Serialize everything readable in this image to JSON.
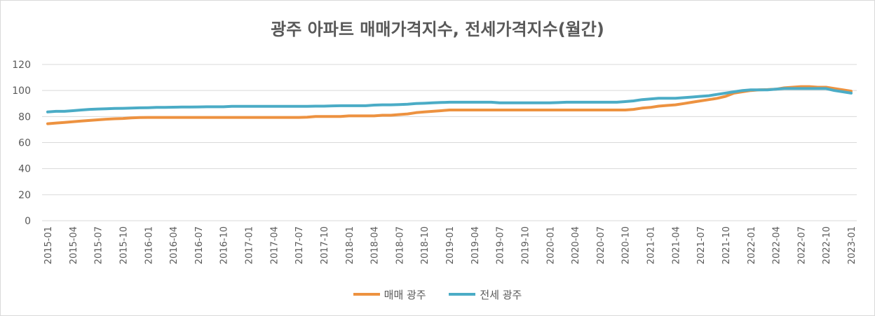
{
  "chart_data": {
    "type": "line",
    "title": "광주 아파트 매매가격지수, 전세가격지수(월간)",
    "xlabel": "",
    "ylabel": "",
    "ylim": [
      0,
      120
    ],
    "yticks": [
      0,
      20,
      40,
      60,
      80,
      100,
      120
    ],
    "grid": true,
    "legend_position": "bottom",
    "x": [
      "2015-01",
      "2015-02",
      "2015-03",
      "2015-04",
      "2015-05",
      "2015-06",
      "2015-07",
      "2015-08",
      "2015-09",
      "2015-10",
      "2015-11",
      "2015-12",
      "2016-01",
      "2016-02",
      "2016-03",
      "2016-04",
      "2016-05",
      "2016-06",
      "2016-07",
      "2016-08",
      "2016-09",
      "2016-10",
      "2016-11",
      "2016-12",
      "2017-01",
      "2017-02",
      "2017-03",
      "2017-04",
      "2017-05",
      "2017-06",
      "2017-07",
      "2017-08",
      "2017-09",
      "2017-10",
      "2017-11",
      "2017-12",
      "2018-01",
      "2018-02",
      "2018-03",
      "2018-04",
      "2018-05",
      "2018-06",
      "2018-07",
      "2018-08",
      "2018-09",
      "2018-10",
      "2018-11",
      "2018-12",
      "2019-01",
      "2019-02",
      "2019-03",
      "2019-04",
      "2019-05",
      "2019-06",
      "2019-07",
      "2019-08",
      "2019-09",
      "2019-10",
      "2019-11",
      "2019-12",
      "2020-01",
      "2020-02",
      "2020-03",
      "2020-04",
      "2020-05",
      "2020-06",
      "2020-07",
      "2020-08",
      "2020-09",
      "2020-10",
      "2020-11",
      "2020-12",
      "2021-01",
      "2021-02",
      "2021-03",
      "2021-04",
      "2021-05",
      "2021-06",
      "2021-07",
      "2021-08",
      "2021-09",
      "2021-10",
      "2021-11",
      "2021-12",
      "2022-01",
      "2022-02",
      "2022-03",
      "2022-04",
      "2022-05",
      "2022-06",
      "2022-07",
      "2022-08",
      "2022-09",
      "2022-10",
      "2022-11",
      "2022-12",
      "2023-01"
    ],
    "xtick_labels": [
      "2015-01",
      "2015-04",
      "2015-07",
      "2015-10",
      "2016-01",
      "2016-04",
      "2016-07",
      "2016-10",
      "2017-01",
      "2017-04",
      "2017-07",
      "2017-10",
      "2018-01",
      "2018-04",
      "2018-07",
      "2018-10",
      "2019-01",
      "2019-04",
      "2019-07",
      "2019-10",
      "2020-01",
      "2020-04",
      "2020-07",
      "2020-10",
      "2021-01",
      "2021-04",
      "2021-07",
      "2021-10",
      "2022-01",
      "2022-04",
      "2022-07",
      "2022-10",
      "2023-01"
    ],
    "series": [
      {
        "name": "매매 광주",
        "color": "#ed9240",
        "values": [
          74.5,
          75.0,
          75.5,
          76.0,
          76.5,
          77.0,
          77.5,
          78.0,
          78.3,
          78.5,
          79.0,
          79.2,
          79.3,
          79.3,
          79.3,
          79.3,
          79.3,
          79.3,
          79.3,
          79.3,
          79.3,
          79.3,
          79.3,
          79.3,
          79.3,
          79.3,
          79.3,
          79.3,
          79.3,
          79.3,
          79.3,
          79.5,
          80.0,
          80.0,
          80.0,
          80.0,
          80.5,
          80.5,
          80.5,
          80.5,
          81.0,
          81.0,
          81.5,
          82.0,
          83.0,
          83.5,
          84.0,
          84.5,
          85.0,
          85.0,
          85.0,
          85.0,
          85.0,
          85.0,
          85.0,
          85.0,
          85.0,
          85.0,
          85.0,
          85.0,
          85.0,
          85.0,
          85.0,
          85.0,
          85.0,
          85.0,
          85.0,
          85.0,
          85.0,
          85.0,
          85.5,
          86.5,
          87.0,
          88.0,
          88.5,
          89.0,
          90.0,
          91.0,
          92.0,
          93.0,
          94.0,
          95.5,
          98.0,
          99.0,
          100.0,
          100.5,
          100.7,
          101.0,
          102.0,
          102.5,
          103.0,
          103.0,
          102.5,
          102.5,
          101.5,
          100.5,
          99.5
        ]
      },
      {
        "name": "전세 광주",
        "color": "#4bacc6",
        "values": [
          83.5,
          84.0,
          84.0,
          84.5,
          85.0,
          85.5,
          85.8,
          86.0,
          86.2,
          86.3,
          86.5,
          86.7,
          86.8,
          87.0,
          87.0,
          87.2,
          87.3,
          87.3,
          87.4,
          87.5,
          87.5,
          87.5,
          87.8,
          87.8,
          87.8,
          87.8,
          87.8,
          87.8,
          87.8,
          87.8,
          87.8,
          87.9,
          88.0,
          88.0,
          88.2,
          88.3,
          88.3,
          88.3,
          88.3,
          88.8,
          89.0,
          89.0,
          89.2,
          89.5,
          90.0,
          90.2,
          90.5,
          90.8,
          91.0,
          91.0,
          91.0,
          91.0,
          91.0,
          91.0,
          90.5,
          90.5,
          90.5,
          90.5,
          90.5,
          90.5,
          90.5,
          90.7,
          91.0,
          91.0,
          91.0,
          91.0,
          91.0,
          91.0,
          91.0,
          91.5,
          92.0,
          93.0,
          93.5,
          94.0,
          94.0,
          94.0,
          94.5,
          95.0,
          95.5,
          96.0,
          97.0,
          98.0,
          99.0,
          100.0,
          100.5,
          100.5,
          100.5,
          101.0,
          101.5,
          101.5,
          101.5,
          101.5,
          101.5,
          101.5,
          100.0,
          99.0,
          98.0
        ]
      }
    ]
  }
}
